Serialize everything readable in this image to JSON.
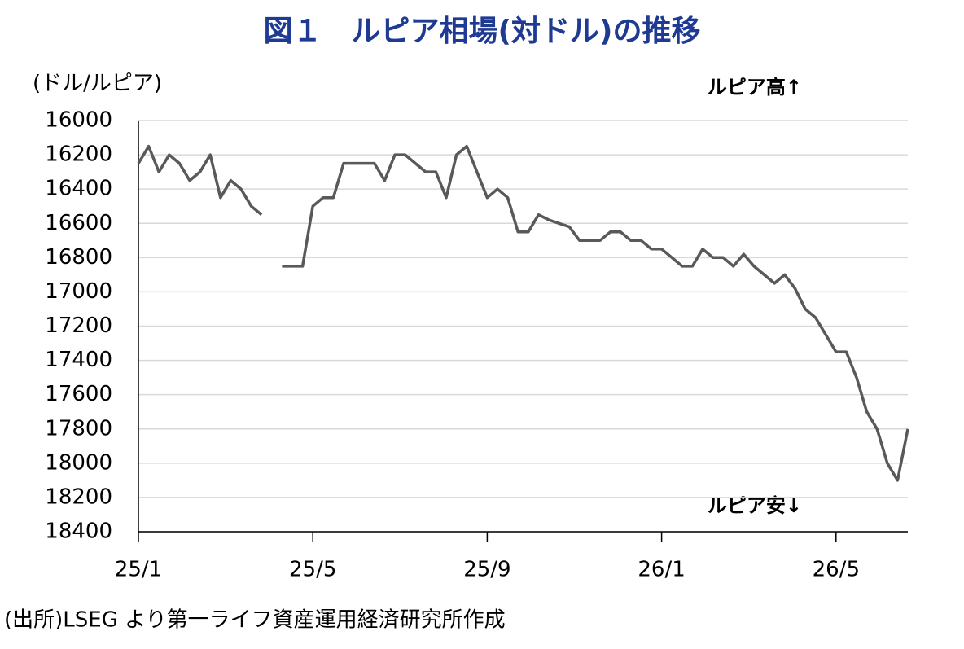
{
  "chart_data": {
    "type": "line",
    "title": "図１　ルピア相場(対ドル)の推移",
    "y_label": "(ドル/ルピア)",
    "annotations": [
      "ルピア高↑",
      "ルピア安↓"
    ],
    "source": "(出所)LSEG より第一ライフ資産運用経済研究所作成",
    "categories": [
      "25/1",
      null,
      null,
      null,
      null,
      null,
      null,
      null,
      null,
      null,
      null,
      null,
      null,
      null,
      null,
      null,
      null,
      "25/5",
      null,
      null,
      null,
      null,
      null,
      null,
      null,
      null,
      null,
      null,
      null,
      null,
      null,
      null,
      null,
      null,
      "25/9",
      null,
      null,
      null,
      null,
      null,
      null,
      null,
      null,
      null,
      null,
      null,
      null,
      null,
      null,
      null,
      null,
      "26/1",
      null,
      null,
      null,
      null,
      null,
      null,
      null,
      null,
      null,
      null,
      null,
      null,
      null,
      null,
      null,
      null,
      "26/5",
      null,
      null,
      null,
      null,
      null,
      null,
      null
    ],
    "series": [
      {
        "color": "#595959",
        "values": [
          16250,
          16150,
          16300,
          16200,
          16250,
          16350,
          16300,
          16200,
          16450,
          16350,
          16400,
          16500,
          16550,
          null,
          16850,
          16850,
          16850,
          16500,
          16450,
          16450,
          16250,
          16250,
          16250,
          16250,
          16350,
          16200,
          16200,
          16250,
          16300,
          16300,
          16450,
          16200,
          16150,
          16300,
          16450,
          16400,
          16450,
          16650,
          16650,
          16550,
          16580,
          16600,
          16620,
          16700,
          16700,
          16700,
          16650,
          16650,
          16700,
          16700,
          16750,
          16750,
          16800,
          16850,
          16850,
          16750,
          16800,
          16800,
          16850,
          16780,
          16850,
          16900,
          16950,
          16900,
          16980,
          17100,
          17150,
          17250,
          17350,
          17350,
          17500,
          17700,
          17800,
          18000,
          18100,
          17800
        ]
      }
    ],
    "ylim": [
      18400,
      16000
    ],
    "yticks": [
      16000,
      16200,
      16400,
      16600,
      16800,
      17000,
      17200,
      17400,
      17600,
      17800,
      18000,
      18200,
      18400
    ],
    "grid": true
  }
}
